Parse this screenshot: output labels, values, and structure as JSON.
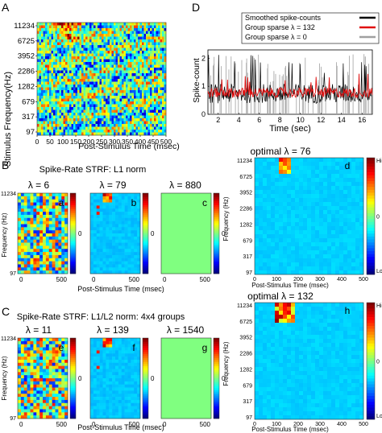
{
  "panel_letters": {
    "a": "A",
    "b": "B",
    "c": "C",
    "d": "D"
  },
  "colorbar_labels": {
    "high": "High",
    "low": "Low",
    "zero": "0"
  },
  "chart_data": [
    {
      "id": "A",
      "type": "heatmap",
      "title": "",
      "xlabel": "Post-Stimulus Time (msec)",
      "ylabel": "Stimulus  Frequency(Hz)",
      "xticks": [
        0,
        50,
        100,
        150,
        200,
        250,
        300,
        350,
        400,
        450,
        500
      ],
      "yticks": [
        "11234",
        "6725",
        "3952",
        "2286",
        "1282",
        "679",
        "317",
        "97"
      ],
      "xlim": [
        0,
        500
      ],
      "description_values": "noisy spectrogram of stimulus; high energy near 150 msec around 6725 Hz",
      "colormap": "jet"
    },
    {
      "id": "D",
      "type": "line",
      "xlabel": "Time (sec)",
      "ylabel": "Spike-count",
      "xticks": [
        2,
        4,
        6,
        8,
        10,
        12,
        14,
        16
      ],
      "yticks": [
        0,
        1,
        2
      ],
      "xlim": [
        1,
        17
      ],
      "ylim": [
        0,
        2.3
      ],
      "legend_position": "top-right",
      "series": [
        {
          "name": "Smoothed spike-counts",
          "color": "#000000"
        },
        {
          "name": "Group sparse λ = 132",
          "color": "#e01010"
        },
        {
          "name": "Group sparse λ = 0",
          "color": "#a0a0a0"
        }
      ]
    },
    {
      "id": "B",
      "type": "heatmap",
      "title": "Spike-Rate STRF:  L1 norm",
      "subplots": [
        {
          "letter": "a",
          "lambda_label": "λ = 6"
        },
        {
          "letter": "b",
          "lambda_label": "λ = 79"
        },
        {
          "letter": "c",
          "lambda_label": "λ = 880"
        }
      ],
      "xlabel": "Post-Stimulus Time (msec)",
      "ylabel": "Frequency (Hz)",
      "yticks": [
        "11234",
        "97"
      ],
      "xticks": [
        "0",
        "500"
      ]
    },
    {
      "id": "B-right",
      "type": "heatmap",
      "title": "optimal λ = 76",
      "letter": "d",
      "xlabel": "Post-Stimulus Time (msec)",
      "ylabel": "Frequency (Hz)",
      "yticks": [
        "11234",
        "6725",
        "3952",
        "2286",
        "1282",
        "679",
        "317",
        "97"
      ],
      "xticks": [
        0,
        100,
        200,
        300,
        400,
        500
      ],
      "colorbar": [
        "High",
        "0",
        "Low"
      ]
    },
    {
      "id": "C",
      "type": "heatmap",
      "title": "Spike-Rate STRF:  L1/L2 norm:  4x4 groups",
      "subplots": [
        {
          "letter": "e",
          "lambda_label": "λ = 11"
        },
        {
          "letter": "f",
          "lambda_label": "λ = 139"
        },
        {
          "letter": "g",
          "lambda_label": "λ = 1540"
        }
      ],
      "xlabel": "Post-Stimulus Time (msec)",
      "ylabel": "Frequency (Hz)",
      "yticks": [
        "11234",
        "97"
      ],
      "xticks": [
        "0",
        "500"
      ]
    },
    {
      "id": "C-right",
      "type": "heatmap",
      "title": "optimal λ = 132",
      "letter": "h",
      "xlabel": "Post-Stimulus Time (msec)",
      "ylabel": "Frequency (Hz)",
      "yticks": [
        "11234",
        "6725",
        "3952",
        "2286",
        "1282",
        "679",
        "317",
        "97"
      ],
      "xticks": [
        0,
        100,
        200,
        300,
        400,
        500
      ],
      "colorbar": [
        "High",
        "0",
        "Low"
      ]
    }
  ]
}
